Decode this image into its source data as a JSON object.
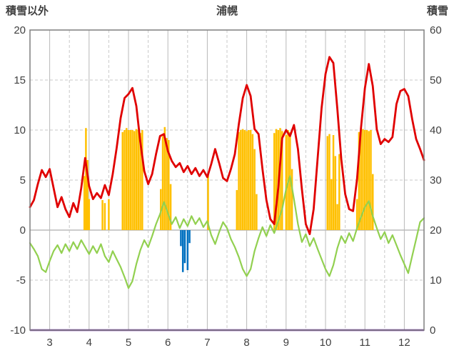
{
  "header": {
    "left_label": "積雪以外",
    "title": "浦幌",
    "right_label": "積雪"
  },
  "chart_data": {
    "type": "line",
    "title": "浦幌",
    "left_axis": {
      "label": "積雪以外",
      "min": -10,
      "max": 20,
      "ticks": [
        20,
        15,
        10,
        5,
        0,
        -5,
        -10
      ]
    },
    "right_axis": {
      "label": "積雪",
      "min": 0,
      "max": 60,
      "ticks": [
        60,
        50,
        40,
        30,
        20,
        10,
        0
      ]
    },
    "x_axis": {
      "min": 2.5,
      "max": 12.5,
      "tick_labels": [
        3,
        4,
        5,
        6,
        7,
        8,
        9,
        10,
        11,
        12
      ],
      "minor_gridlines": [
        3.5,
        4.5,
        5.5,
        6.5,
        7.5,
        8.5,
        9.5,
        10.5,
        11.5
      ]
    },
    "grid": {
      "h_dash_color": "#c9c9c9",
      "v_solid_color": "#b8b8b8",
      "zero_line_color": "#9a9a9a",
      "border_color": "#7f7f7f"
    },
    "series": [
      {
        "name": "orange-bars",
        "type": "bar",
        "axis": "left",
        "color": "#ffc000",
        "bar_width_units": 0.045,
        "points": [
          [
            3.88,
            5.4
          ],
          [
            3.92,
            10.2
          ],
          [
            3.96,
            7.0
          ],
          [
            4.0,
            3.1
          ],
          [
            4.34,
            3.0
          ],
          [
            4.4,
            2.7
          ],
          [
            4.5,
            3.1
          ],
          [
            4.85,
            9.8
          ],
          [
            4.9,
            10.0
          ],
          [
            4.95,
            10.2
          ],
          [
            5.0,
            10.0
          ],
          [
            5.05,
            10.0
          ],
          [
            5.1,
            10.0
          ],
          [
            5.15,
            9.9
          ],
          [
            5.2,
            10.1
          ],
          [
            5.25,
            10.0
          ],
          [
            5.3,
            9.7
          ],
          [
            5.35,
            10.0
          ],
          [
            5.82,
            4.1
          ],
          [
            5.87,
            9.4
          ],
          [
            5.92,
            10.3
          ],
          [
            5.97,
            9.2
          ],
          [
            6.02,
            9.0
          ],
          [
            6.07,
            4.6
          ],
          [
            7.02,
            5.5
          ],
          [
            7.75,
            4.0
          ],
          [
            7.8,
            9.8
          ],
          [
            7.85,
            10.0
          ],
          [
            7.9,
            10.1
          ],
          [
            7.95,
            10.0
          ],
          [
            8.0,
            9.9
          ],
          [
            8.05,
            10.0
          ],
          [
            8.1,
            10.0
          ],
          [
            8.15,
            9.6
          ],
          [
            8.2,
            8.1
          ],
          [
            8.25,
            3.6
          ],
          [
            8.7,
            9.7
          ],
          [
            8.75,
            10.1
          ],
          [
            8.8,
            10.0
          ],
          [
            8.85,
            10.2
          ],
          [
            8.9,
            9.9
          ],
          [
            9.0,
            9.5
          ],
          [
            9.05,
            10.0
          ],
          [
            9.1,
            9.8
          ],
          [
            9.15,
            6.1
          ],
          [
            10.05,
            9.4
          ],
          [
            10.1,
            9.6
          ],
          [
            10.15,
            5.1
          ],
          [
            10.2,
            9.5
          ],
          [
            10.25,
            7.4
          ],
          [
            10.3,
            2.6
          ],
          [
            10.35,
            7.6
          ],
          [
            10.8,
            3.1
          ],
          [
            10.85,
            9.8
          ],
          [
            10.9,
            10.0
          ],
          [
            10.95,
            10.1
          ],
          [
            11.0,
            10.0
          ],
          [
            11.05,
            10.0
          ],
          [
            11.1,
            9.9
          ],
          [
            11.15,
            10.0
          ],
          [
            11.2,
            5.6
          ]
        ]
      },
      {
        "name": "blue-bars",
        "type": "bar",
        "axis": "left",
        "color": "#0070c0",
        "bar_width_units": 0.045,
        "points": [
          [
            6.33,
            -1.6
          ],
          [
            6.38,
            -4.2
          ],
          [
            6.43,
            -3.3
          ],
          [
            6.5,
            -4.0
          ],
          [
            6.55,
            -1.3
          ]
        ]
      },
      {
        "name": "green-line",
        "type": "line",
        "axis": "left",
        "color": "#92d050",
        "width": 2.2,
        "x_start": 2.5,
        "x_step": 0.1,
        "values": [
          -1.3,
          -1.9,
          -2.6,
          -3.9,
          -4.2,
          -3.1,
          -2.1,
          -1.5,
          -2.3,
          -1.4,
          -2.1,
          -1.2,
          -1.9,
          -1.0,
          -1.7,
          -2.4,
          -1.6,
          -2.3,
          -1.4,
          -2.6,
          -3.2,
          -2.1,
          -2.9,
          -3.7,
          -4.7,
          -5.8,
          -5.1,
          -3.4,
          -2.0,
          -1.0,
          -1.7,
          -0.6,
          0.6,
          1.6,
          2.8,
          1.7,
          0.6,
          1.3,
          0.2,
          1.1,
          0.4,
          1.4,
          0.6,
          1.2,
          0.3,
          0.9,
          -0.5,
          -1.4,
          -0.2,
          0.8,
          0.2,
          -0.9,
          -1.7,
          -2.7,
          -3.9,
          -4.6,
          -3.9,
          -2.1,
          -0.8,
          0.3,
          -0.6,
          0.5,
          -0.3,
          0.9,
          2.1,
          4.1,
          5.4,
          3.1,
          0.6,
          -1.2,
          -0.4,
          -1.6,
          -0.8,
          -1.9,
          -2.9,
          -3.9,
          -4.6,
          -3.5,
          -1.8,
          -0.6,
          -1.3,
          -0.3,
          -1.1,
          0.2,
          1.3,
          2.3,
          2.9,
          1.4,
          0.2,
          -0.9,
          -0.2,
          -1.3,
          -0.5,
          -1.5,
          -2.5,
          -3.4,
          -4.3,
          -2.6,
          -0.9,
          0.8,
          1.2
        ]
      },
      {
        "name": "red-line",
        "type": "line",
        "axis": "left",
        "color": "#e00000",
        "width": 2.8,
        "x_start": 2.5,
        "x_step": 0.1,
        "values": [
          2.3,
          3.0,
          4.6,
          6.0,
          5.3,
          6.1,
          4.2,
          2.3,
          3.3,
          2.1,
          1.3,
          2.7,
          1.8,
          4.2,
          7.2,
          4.4,
          3.1,
          3.7,
          3.2,
          4.5,
          3.5,
          5.6,
          8.2,
          11.2,
          13.2,
          13.6,
          14.2,
          12.4,
          8.8,
          5.9,
          4.6,
          5.6,
          7.6,
          9.4,
          9.6,
          7.9,
          6.9,
          6.3,
          6.7,
          5.8,
          6.4,
          5.6,
          6.2,
          5.4,
          6.0,
          5.3,
          6.6,
          8.1,
          6.7,
          5.2,
          4.9,
          6.1,
          7.6,
          10.6,
          13.2,
          14.5,
          13.4,
          10.1,
          9.6,
          6.1,
          3.0,
          1.1,
          0.6,
          4.2,
          9.2,
          10.0,
          9.4,
          10.5,
          8.1,
          4.1,
          0.6,
          -0.4,
          2.1,
          7.2,
          12.2,
          15.6,
          17.3,
          16.7,
          12.1,
          7.1,
          3.6,
          2.1,
          1.9,
          5.1,
          10.2,
          14.2,
          16.6,
          14.4,
          10.1,
          8.6,
          9.1,
          8.8,
          9.3,
          12.6,
          13.9,
          14.1,
          13.4,
          11.1,
          9.1,
          8.1,
          7.0
        ]
      },
      {
        "name": "purple-snow-line",
        "type": "constant-line",
        "axis": "right",
        "color": "#7030a0",
        "width": 2.5,
        "value": 0
      }
    ]
  }
}
